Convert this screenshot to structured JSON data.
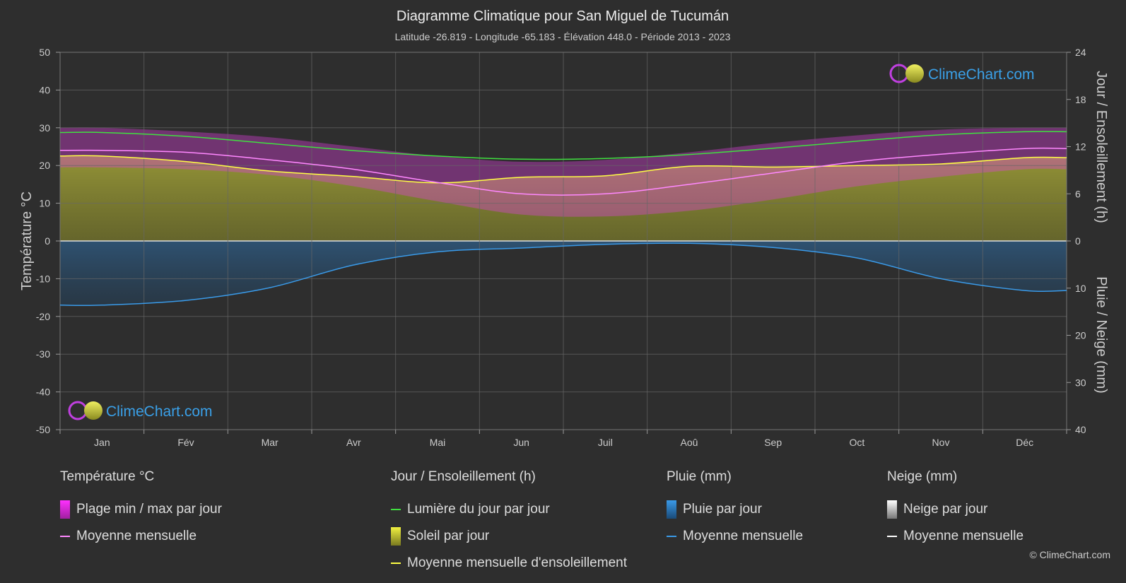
{
  "title": "Diagramme Climatique pour San Miguel de Tucumán",
  "subtitle": "Latitude -26.819 - Longitude -65.183 - Élévation 448.0 - Période 2013 - 2023",
  "logo_text": "ClimeChart.com",
  "copyright": "© ClimeChart.com",
  "colors": {
    "background": "#2e2e2e",
    "temp_range": "#e040e0",
    "temp_mean": "#ff88ff",
    "daylight": "#40e040",
    "sunshine": "#b5b53a",
    "sunshine_mean": "#ffff44",
    "rain": "#2f7fc0",
    "rain_mean": "#3a9ae8",
    "snow_mean": "#ffffff"
  },
  "legend": {
    "temperature": {
      "title": "Température °C",
      "range_label": "Plage min / max par jour",
      "mean_label": "Moyenne mensuelle"
    },
    "sun": {
      "title": "Jour / Ensoleillement (h)",
      "daylight_label": "Lumière du jour par jour",
      "sunshine_label": "Soleil par jour",
      "sunshine_mean_label": "Moyenne mensuelle d'ensoleillement"
    },
    "rain": {
      "title": "Pluie (mm)",
      "daily_label": "Pluie par jour",
      "mean_label": "Moyenne mensuelle"
    },
    "snow": {
      "title": "Neige (mm)",
      "daily_label": "Neige par jour",
      "mean_label": "Moyenne mensuelle"
    }
  },
  "chart_data": {
    "type": "area",
    "months": [
      "Jan",
      "Fév",
      "Mar",
      "Avr",
      "Mai",
      "Jun",
      "Juil",
      "Aoû",
      "Sep",
      "Oct",
      "Nov",
      "Déc"
    ],
    "y_left": {
      "label": "Température °C",
      "ylim": [
        -50,
        50
      ],
      "ticks": [
        50,
        40,
        30,
        20,
        10,
        0,
        -10,
        -20,
        -30,
        -40,
        -50
      ]
    },
    "y_right_top": {
      "label": "Jour / Ensoleillement (h)",
      "ylim": [
        0,
        24
      ],
      "ticks": [
        24,
        18,
        12,
        6,
        0
      ]
    },
    "y_right_bottom": {
      "label": "Pluie / Neige (mm)",
      "ylim": [
        0,
        40
      ],
      "ticks": [
        0,
        10,
        20,
        30,
        40
      ]
    },
    "grid": true,
    "series": [
      {
        "name": "Moyenne mensuelle",
        "group": "temperature",
        "unit": "°C",
        "values": [
          24.0,
          23.5,
          21.5,
          19.0,
          15.5,
          12.5,
          12.5,
          15.0,
          18.0,
          21.0,
          23.0,
          24.5
        ]
      },
      {
        "name": "Plage min / max par jour (max)",
        "group": "temperature",
        "unit": "°C",
        "values": [
          30.0,
          29.0,
          27.5,
          25.0,
          22.5,
          21.0,
          21.5,
          23.5,
          26.0,
          28.0,
          29.5,
          30.0
        ]
      },
      {
        "name": "Plage min / max par jour (min)",
        "group": "temperature",
        "unit": "°C",
        "values": [
          19.5,
          19.0,
          17.5,
          14.5,
          10.5,
          7.0,
          6.5,
          8.0,
          11.0,
          14.5,
          17.0,
          19.0
        ]
      },
      {
        "name": "Lumière du jour par jour",
        "group": "sun",
        "unit": "h",
        "values": [
          13.8,
          13.3,
          12.4,
          11.5,
          10.8,
          10.4,
          10.5,
          11.0,
          11.8,
          12.7,
          13.5,
          13.9
        ]
      },
      {
        "name": "Moyenne mensuelle d'ensoleillement",
        "group": "sun",
        "unit": "h",
        "values": [
          10.8,
          10.1,
          8.9,
          8.2,
          7.4,
          8.1,
          8.3,
          9.5,
          9.4,
          9.6,
          9.8,
          10.6
        ]
      },
      {
        "name": "Pluie Moyenne mensuelle",
        "group": "rain",
        "unit": "mm",
        "values": [
          13.6,
          12.6,
          9.9,
          5.1,
          2.3,
          1.5,
          0.7,
          0.5,
          1.4,
          3.6,
          8.0,
          10.5
        ]
      }
    ]
  }
}
